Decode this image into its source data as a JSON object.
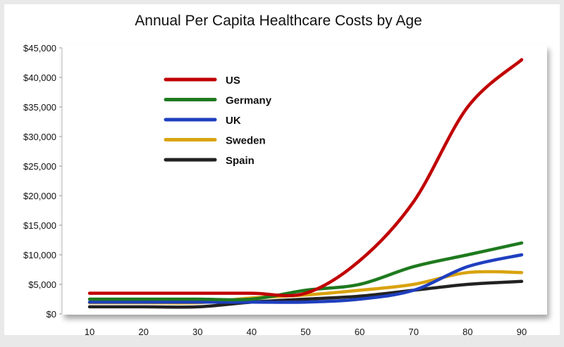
{
  "chart_data": {
    "type": "line",
    "title": "Annual Per Capita Healthcare Costs by Age",
    "xlabel": "",
    "ylabel": "",
    "x": [
      10,
      20,
      30,
      40,
      50,
      60,
      70,
      80,
      90
    ],
    "xticks": [
      "10",
      "20",
      "30",
      "40",
      "50",
      "60",
      "70",
      "80",
      "90"
    ],
    "yticks": [
      "$0",
      "$5,000",
      "$10,000",
      "$15,000",
      "$20,000",
      "$25,000",
      "$30,000",
      "$35,000",
      "$40,000",
      "$45,000"
    ],
    "ylim": [
      0,
      45000
    ],
    "grid": false,
    "legend": "top-left",
    "series": [
      {
        "name": "US",
        "color": "#c00000",
        "values": [
          3500,
          3500,
          3500,
          3500,
          3500,
          9000,
          19000,
          35000,
          43000
        ]
      },
      {
        "name": "Germany",
        "color": "#1e7a1e",
        "values": [
          2500,
          2500,
          2500,
          2500,
          4000,
          5000,
          8000,
          10000,
          12000
        ]
      },
      {
        "name": "UK",
        "color": "#1f3fbf",
        "values": [
          2000,
          2000,
          2000,
          2000,
          2000,
          2500,
          4000,
          8000,
          10000
        ]
      },
      {
        "name": "Sweden",
        "color": "#d9a30f",
        "values": [
          1900,
          1900,
          1900,
          2700,
          3200,
          4000,
          5000,
          7000,
          7000
        ]
      },
      {
        "name": "Spain",
        "color": "#222222",
        "values": [
          1200,
          1200,
          1200,
          2000,
          2500,
          3000,
          4000,
          5000,
          5500
        ]
      }
    ]
  }
}
